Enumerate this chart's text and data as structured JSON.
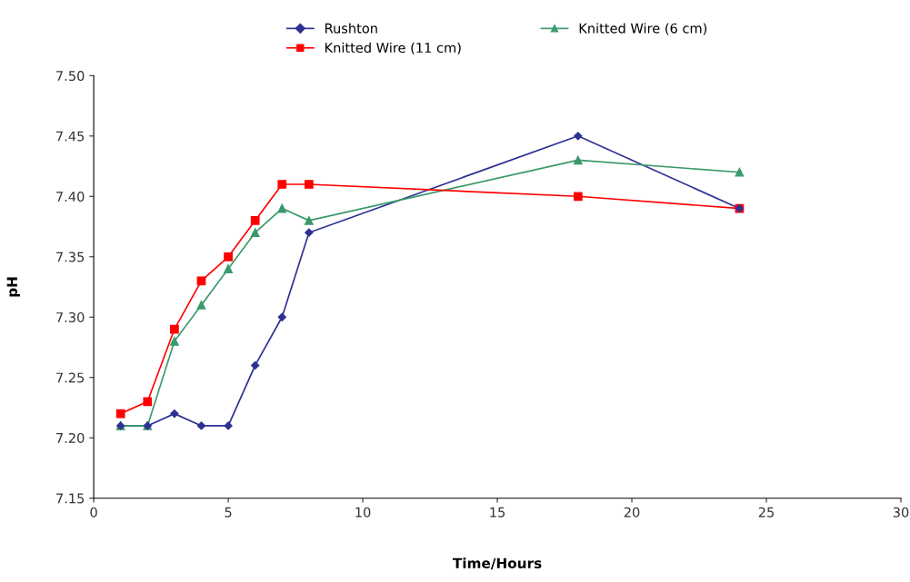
{
  "chart_data": {
    "type": "line",
    "xlabel": "Time/Hours",
    "ylabel": "pH",
    "xlim": [
      0,
      30
    ],
    "xticks": [
      0,
      5,
      10,
      15,
      20,
      25,
      30
    ],
    "ylim": [
      7.15,
      7.5
    ],
    "yticks": [
      {
        "value": 7.15,
        "label": "7.15"
      },
      {
        "value": 7.2,
        "label": "7.20"
      },
      {
        "value": 7.25,
        "label": "7.25"
      },
      {
        "value": 7.3,
        "label": "7.30"
      },
      {
        "value": 7.35,
        "label": "7.35"
      },
      {
        "value": 7.4,
        "label": "7.40"
      },
      {
        "value": 7.45,
        "label": "7.45"
      },
      {
        "value": 7.5,
        "label": "7.50"
      }
    ],
    "x": [
      1,
      2,
      3,
      4,
      5,
      6,
      7,
      8,
      18,
      24
    ],
    "series": [
      {
        "name": "Rushton",
        "color": "#2e3192",
        "marker": "diamond",
        "values": [
          7.21,
          7.21,
          7.22,
          7.21,
          7.21,
          7.26,
          7.3,
          7.37,
          7.45,
          7.39
        ]
      },
      {
        "name": "Knitted Wire (6 cm)",
        "color": "#3a9a6a",
        "marker": "triangle",
        "values": [
          7.21,
          7.21,
          7.28,
          7.31,
          7.34,
          7.37,
          7.39,
          7.38,
          7.43,
          7.42
        ]
      },
      {
        "name": "Knitted Wire (11 cm)",
        "color": "#ff0000",
        "marker": "square",
        "values": [
          7.22,
          7.23,
          7.29,
          7.33,
          7.35,
          7.38,
          7.41,
          7.41,
          7.4,
          7.39
        ]
      }
    ],
    "grid": false,
    "legend": "top",
    "line_style": "solid"
  }
}
